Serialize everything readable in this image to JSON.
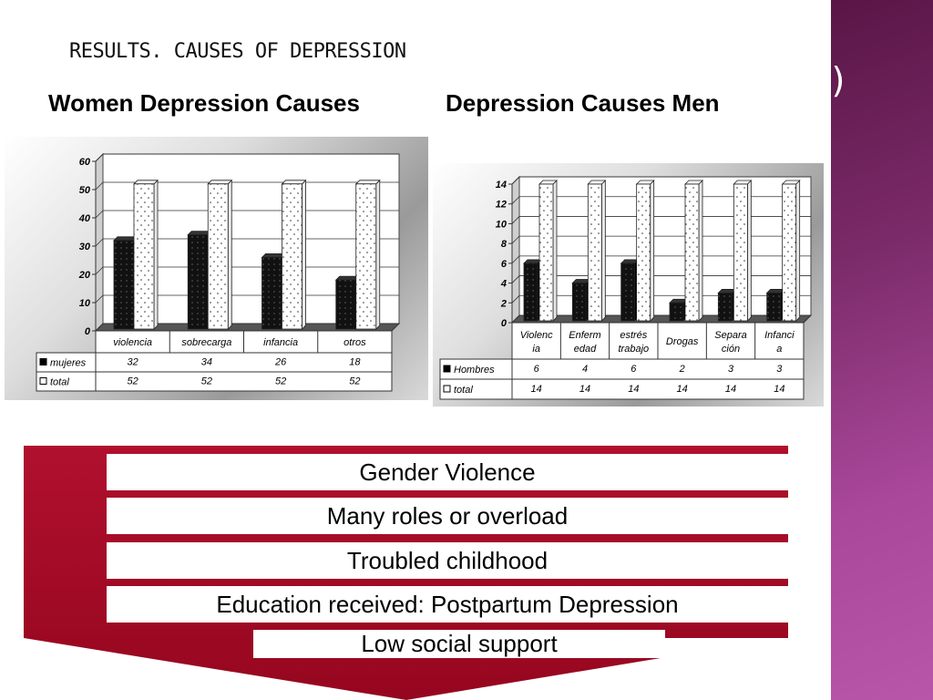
{
  "slide": {
    "title": "RESULTS. CAUSES OF DEPRESSION",
    "side_fragment": "l)"
  },
  "headings": {
    "women": "Women Depression Causes",
    "men": "Depression Causes Men"
  },
  "colors": {
    "funnel_red": "#a8092b",
    "side_band": "#7a2a68",
    "bar_dark": "#111111",
    "bar_light": "#ffffff"
  },
  "chart_data": [
    {
      "type": "bar",
      "title": "",
      "categories": [
        [
          "violencia"
        ],
        [
          "sobrecarga"
        ],
        [
          "infancia"
        ],
        [
          "otros"
        ]
      ],
      "series": [
        {
          "name": "mujeres",
          "values": [
            32,
            34,
            26,
            18
          ],
          "color": "#111111"
        },
        {
          "name": "total",
          "values": [
            52,
            52,
            52,
            52
          ],
          "color": "#ffffff"
        }
      ],
      "ylim": [
        0,
        60
      ],
      "yticks": [
        0,
        10,
        20,
        30,
        40,
        50,
        60
      ],
      "grid": true,
      "legend": "data-table"
    },
    {
      "type": "bar",
      "title": "",
      "categories": [
        [
          "Violenc",
          "ia"
        ],
        [
          "Enferm",
          "edad"
        ],
        [
          "estrés",
          "trabajo"
        ],
        [
          "Drogas"
        ],
        [
          "Separa",
          "ción"
        ],
        [
          "Infanci",
          "a"
        ]
      ],
      "series": [
        {
          "name": "Hombres",
          "values": [
            6,
            4,
            6,
            2,
            3,
            3
          ],
          "color": "#111111"
        },
        {
          "name": "total",
          "values": [
            14,
            14,
            14,
            14,
            14,
            14
          ],
          "color": "#ffffff"
        }
      ],
      "ylim": [
        0,
        14
      ],
      "yticks": [
        0,
        2,
        4,
        6,
        8,
        10,
        12,
        14
      ],
      "grid": true,
      "legend": "data-table"
    }
  ],
  "funnel": {
    "items": [
      "Gender Violence",
      "Many roles or overload",
      "Troubled childhood",
      "Education received: Postpartum Depression",
      "Low social support"
    ]
  }
}
